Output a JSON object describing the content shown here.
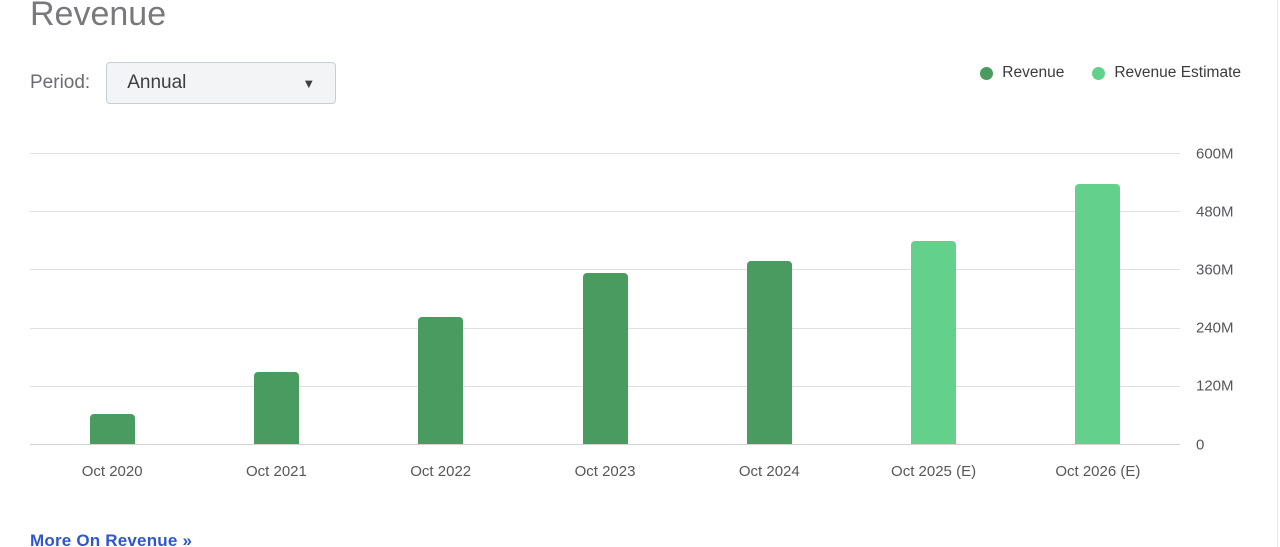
{
  "header": {
    "title": "Revenue"
  },
  "controls": {
    "period_label": "Period:",
    "period_value": "Annual",
    "dropdown_arrow": "▼"
  },
  "legend": [
    {
      "label": "Revenue",
      "color": "#4a9b60"
    },
    {
      "label": "Revenue Estimate",
      "color": "#63d18c"
    }
  ],
  "footer": {
    "more_link": "More On Revenue »"
  },
  "chart_data": {
    "type": "bar",
    "title": "Revenue",
    "categories": [
      "Oct 2020",
      "Oct 2021",
      "Oct 2022",
      "Oct 2023",
      "Oct 2024",
      "Oct 2025 (E)",
      "Oct 2026 (E)"
    ],
    "series": [
      {
        "name": "Revenue",
        "color": "#4a9b60",
        "values": [
          62,
          148,
          261,
          353,
          378,
          null,
          null
        ]
      },
      {
        "name": "Revenue Estimate",
        "color": "#63d18c",
        "values": [
          null,
          null,
          null,
          null,
          null,
          418,
          537
        ]
      }
    ],
    "xlabel": "",
    "ylabel": "",
    "ylim": [
      0,
      600
    ],
    "yticks": [
      0,
      120,
      240,
      360,
      480,
      600
    ],
    "ytick_labels": [
      "0",
      "120M",
      "240M",
      "360M",
      "480M",
      "600M"
    ],
    "grid": true,
    "legend_position": "top-right"
  }
}
